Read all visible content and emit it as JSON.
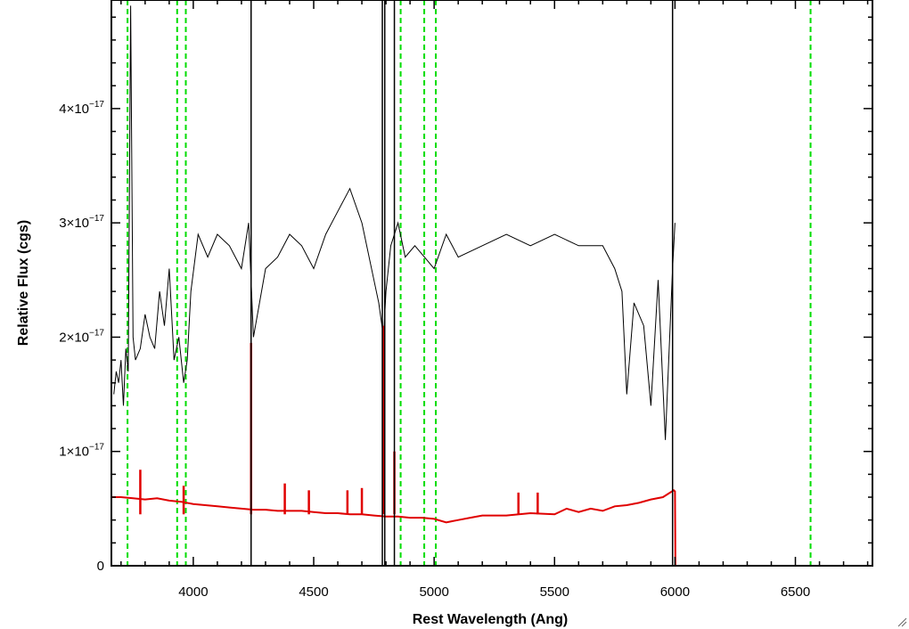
{
  "chart_data": {
    "type": "line",
    "title": "",
    "xlabel": "Rest Wavelength (Ang)",
    "ylabel": "Relative Flux (cgs)",
    "xlim": [
      3660,
      6820
    ],
    "ylim": [
      0,
      4.95e-17
    ],
    "x_ticks": [
      4000,
      4500,
      5000,
      5500,
      6000,
      6500
    ],
    "y_ticks": [
      {
        "value": 0,
        "label": "0"
      },
      {
        "value": 1e-17,
        "mantissa": "1",
        "base": "×10",
        "exponent": "−17"
      },
      {
        "value": 2e-17,
        "mantissa": "2",
        "base": "×10",
        "exponent": "−17"
      },
      {
        "value": 3e-17,
        "mantissa": "3",
        "base": "×10",
        "exponent": "−17"
      },
      {
        "value": 4e-17,
        "mantissa": "4",
        "base": "×10",
        "exponent": "−17"
      }
    ],
    "grid": false,
    "series": [
      {
        "role": "spectrum",
        "color": "#000000",
        "x": [
          3670,
          3680,
          3690,
          3700,
          3710,
          3720,
          3730,
          3740,
          3750,
          3760,
          3780,
          3800,
          3820,
          3840,
          3860,
          3880,
          3900,
          3920,
          3940,
          3960,
          3975,
          3990,
          4020,
          4060,
          4100,
          4150,
          4200,
          4230,
          4250,
          4300,
          4350,
          4400,
          4450,
          4500,
          4550,
          4600,
          4650,
          4700,
          4750,
          4770,
          4790,
          4800,
          4820,
          4850,
          4880,
          4920,
          4960,
          5000,
          5050,
          5100,
          5200,
          5300,
          5400,
          5500,
          5600,
          5700,
          5750,
          5780,
          5800,
          5830,
          5870,
          5900,
          5930,
          5960,
          5990,
          6000
        ],
        "y": [
          1.5e-17,
          1.7e-17,
          1.6e-17,
          1.8e-17,
          1.4e-17,
          1.9e-17,
          1.7e-17,
          4.9e-17,
          2e-17,
          1.8e-17,
          1.9e-17,
          2.2e-17,
          2e-17,
          1.9e-17,
          2.4e-17,
          2.1e-17,
          2.6e-17,
          1.8e-17,
          2e-17,
          1.6e-17,
          1.8e-17,
          2.4e-17,
          2.9e-17,
          2.7e-17,
          2.9e-17,
          2.8e-17,
          2.6e-17,
          3e-17,
          2e-17,
          2.6e-17,
          2.7e-17,
          2.9e-17,
          2.8e-17,
          2.6e-17,
          2.9e-17,
          3.1e-17,
          3.3e-17,
          3e-17,
          2.5e-17,
          2.3e-17,
          2e-17,
          2.4e-17,
          2.8e-17,
          3e-17,
          2.7e-17,
          2.8e-17,
          2.7e-17,
          2.6e-17,
          2.9e-17,
          2.7e-17,
          2.8e-17,
          2.9e-17,
          2.8e-17,
          2.9e-17,
          2.8e-17,
          2.8e-17,
          2.6e-17,
          2.4e-17,
          1.5e-17,
          2.3e-17,
          2.1e-17,
          1.4e-17,
          2.5e-17,
          1.1e-17,
          2.6e-17,
          3e-17
        ]
      },
      {
        "role": "error",
        "color": "#e00000",
        "x": [
          3660,
          3700,
          3750,
          3800,
          3850,
          3900,
          3950,
          4000,
          4050,
          4100,
          4150,
          4200,
          4250,
          4300,
          4350,
          4400,
          4450,
          4500,
          4550,
          4600,
          4650,
          4700,
          4750,
          4800,
          4850,
          4900,
          4950,
          5000,
          5050,
          5100,
          5150,
          5200,
          5300,
          5400,
          5500,
          5550,
          5600,
          5650,
          5700,
          5750,
          5800,
          5850,
          5900,
          5950,
          5995,
          6000,
          6002,
          6400,
          6820
        ],
        "y": [
          6e-18,
          6e-18,
          5.9e-18,
          5.8e-18,
          5.9e-18,
          5.7e-18,
          5.6e-18,
          5.4e-18,
          5.3e-18,
          5.2e-18,
          5.1e-18,
          5e-18,
          4.9e-18,
          4.9e-18,
          4.8e-18,
          4.8e-18,
          4.8e-18,
          4.7e-18,
          4.6e-18,
          4.6e-18,
          4.5e-18,
          4.5e-18,
          4.4e-18,
          4.3e-18,
          4.3e-18,
          4.2e-18,
          4.2e-18,
          4.1e-18,
          3.8e-18,
          4e-18,
          4.2e-18,
          4.4e-18,
          4.4e-18,
          4.6e-18,
          4.5e-18,
          5e-18,
          4.7e-18,
          5e-18,
          4.8e-18,
          5.2e-18,
          5.3e-18,
          5.5e-18,
          5.8e-18,
          6e-18,
          6.6e-18,
          6.5e-18,
          0,
          0,
          0
        ]
      }
    ],
    "spikes": [
      {
        "x": 3780,
        "y": 8.4e-18,
        "color": "#e00000"
      },
      {
        "x": 3960,
        "y": 7e-18,
        "color": "#e00000"
      },
      {
        "x": 4240,
        "y": 1.95e-17,
        "color": "#e00000"
      },
      {
        "x": 4380,
        "y": 7.2e-18,
        "color": "#e00000"
      },
      {
        "x": 4480,
        "y": 6.6e-18,
        "color": "#e00000"
      },
      {
        "x": 4640,
        "y": 6.6e-18,
        "color": "#e00000"
      },
      {
        "x": 4700,
        "y": 6.8e-18,
        "color": "#e00000"
      },
      {
        "x": 4790,
        "y": 2.1e-17,
        "color": "#e00000"
      },
      {
        "x": 4835,
        "y": 1e-17,
        "color": "#e00000"
      },
      {
        "x": 5350,
        "y": 6.4e-18,
        "color": "#e00000"
      },
      {
        "x": 5430,
        "y": 6.4e-18,
        "color": "#e00000"
      },
      {
        "x": 4240,
        "y": 4.95e-17,
        "color": "#000000",
        "y0": 0
      },
      {
        "x": 4785,
        "y": 4.95e-17,
        "color": "#000000",
        "y0": 0
      },
      {
        "x": 4795,
        "y": 4.95e-17,
        "color": "#000000",
        "y0": 0
      },
      {
        "x": 4835,
        "y": 4.95e-17,
        "color": "#000000",
        "y0": 0
      },
      {
        "x": 5990,
        "y": 4.95e-17,
        "color": "#000000",
        "y0": 0
      }
    ],
    "reference_lines": {
      "color": "#00dd00",
      "style": "dashed",
      "x": [
        3727,
        3933,
        3969,
        4861,
        4959,
        5007,
        6563
      ]
    }
  }
}
